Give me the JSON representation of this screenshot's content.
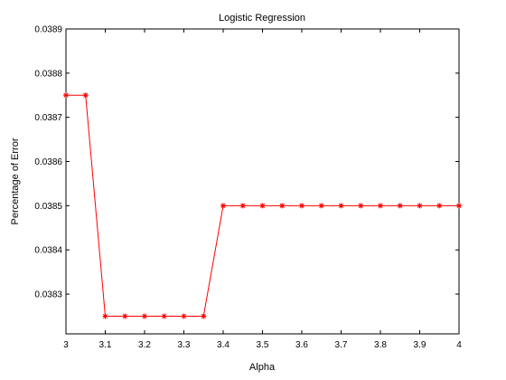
{
  "chart_data": {
    "type": "line",
    "title": "Logistic Regression",
    "xlabel": "Alpha",
    "ylabel": "Percentage of Error",
    "xlim": [
      3,
      4
    ],
    "ylim": [
      0.03821,
      0.0389
    ],
    "xticks": [
      3,
      3.1,
      3.2,
      3.3,
      3.4,
      3.5,
      3.6,
      3.7,
      3.8,
      3.9,
      4
    ],
    "xtick_labels": [
      "3",
      "3.1",
      "3.2",
      "3.3",
      "3.4",
      "3.5",
      "3.6",
      "3.7",
      "3.8",
      "3.9",
      "4"
    ],
    "yticks": [
      0.0383,
      0.0384,
      0.0385,
      0.0386,
      0.0387,
      0.0388,
      0.0389
    ],
    "ytick_labels": [
      "0.0383",
      "0.0384",
      "0.0385",
      "0.0386",
      "0.0387",
      "0.0388",
      "0.0389"
    ],
    "grid": false,
    "series": [
      {
        "color": "#ff0000",
        "marker": "asterisk",
        "x": [
          3,
          3.05,
          3.1,
          3.15,
          3.2,
          3.25,
          3.3,
          3.35,
          3.4,
          3.45,
          3.5,
          3.55,
          3.6,
          3.65,
          3.7,
          3.75,
          3.8,
          3.85,
          3.9,
          3.95,
          4
        ],
        "y": [
          0.03875,
          0.03875,
          0.03825,
          0.03825,
          0.03825,
          0.03825,
          0.03825,
          0.03825,
          0.0385,
          0.0385,
          0.0385,
          0.0385,
          0.0385,
          0.0385,
          0.0385,
          0.0385,
          0.0385,
          0.0385,
          0.0385,
          0.0385,
          0.0385
        ]
      }
    ]
  }
}
